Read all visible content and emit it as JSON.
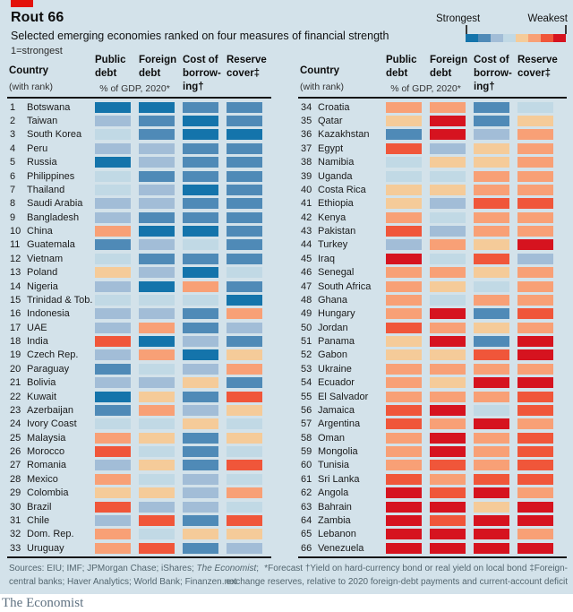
{
  "header": {
    "tag_color": "#e3120b",
    "title": "Rout 66",
    "subtitle": "Selected emerging economies ranked on four measures of financial strength",
    "scale_note": "1=strongest",
    "legend": {
      "strongest_label": "Strongest",
      "weakest_label": "Weakest"
    }
  },
  "palette": {
    "bins": [
      "#1474ab",
      "#4f8ab7",
      "#a2bdd7",
      "#c1d9e5",
      "#f5cb99",
      "#f8a076",
      "#f0563a",
      "#d6131f"
    ],
    "background": "#d3e2ea",
    "accent_red": "#e3120b"
  },
  "columns": {
    "country": "Country",
    "with_rank": "(with rank)",
    "gdp_note": "% of GDP, 2020*",
    "measures": [
      {
        "l1": "Public",
        "l2": "debt",
        "l3": ""
      },
      {
        "l1": "Foreign",
        "l2": "debt",
        "l3": ""
      },
      {
        "l1": "Cost of",
        "l2": "borrow-",
        "l3": "ing†"
      },
      {
        "l1": "Reserve",
        "l2": "cover‡",
        "l3": ""
      }
    ]
  },
  "chart_data": {
    "type": "heatmap",
    "title": "Rout 66",
    "subtitle": "Selected emerging economies ranked on four measures of financial strength",
    "measures": [
      "Public debt",
      "Foreign debt",
      "Cost of borrowing",
      "Reserve cover"
    ],
    "scale": "color bins 1 (strongest, dark blue) to 8 (weakest, red), as read from the chart cells",
    "countries": [
      {
        "rank": 1,
        "name": "Botswana",
        "values": [
          1,
          1,
          2,
          2
        ]
      },
      {
        "rank": 2,
        "name": "Taiwan",
        "values": [
          3,
          2,
          1,
          2
        ]
      },
      {
        "rank": 3,
        "name": "South Korea",
        "values": [
          4,
          2,
          1,
          1
        ]
      },
      {
        "rank": 4,
        "name": "Peru",
        "values": [
          3,
          3,
          2,
          2
        ]
      },
      {
        "rank": 5,
        "name": "Russia",
        "values": [
          1,
          3,
          2,
          2
        ]
      },
      {
        "rank": 6,
        "name": "Philippines",
        "values": [
          4,
          2,
          2,
          2
        ]
      },
      {
        "rank": 7,
        "name": "Thailand",
        "values": [
          4,
          3,
          1,
          2
        ]
      },
      {
        "rank": 8,
        "name": "Saudi Arabia",
        "values": [
          3,
          3,
          2,
          2
        ]
      },
      {
        "rank": 9,
        "name": "Bangladesh",
        "values": [
          3,
          2,
          2,
          2
        ]
      },
      {
        "rank": 10,
        "name": "China",
        "values": [
          6,
          1,
          1,
          2
        ]
      },
      {
        "rank": 11,
        "name": "Guatemala",
        "values": [
          2,
          3,
          4,
          2
        ]
      },
      {
        "rank": 12,
        "name": "Vietnam",
        "values": [
          4,
          2,
          2,
          2
        ]
      },
      {
        "rank": 13,
        "name": "Poland",
        "values": [
          5,
          3,
          1,
          4
        ]
      },
      {
        "rank": 14,
        "name": "Nigeria",
        "values": [
          3,
          1,
          6,
          2
        ]
      },
      {
        "rank": 15,
        "name": "Trinidad & Tob.",
        "values": [
          4,
          4,
          4,
          1
        ]
      },
      {
        "rank": 16,
        "name": "Indonesia",
        "values": [
          3,
          3,
          2,
          6
        ]
      },
      {
        "rank": 17,
        "name": "UAE",
        "values": [
          3,
          6,
          2,
          3
        ]
      },
      {
        "rank": 18,
        "name": "India",
        "values": [
          7,
          1,
          3,
          2
        ]
      },
      {
        "rank": 19,
        "name": "Czech Rep.",
        "values": [
          3,
          6,
          1,
          5
        ]
      },
      {
        "rank": 20,
        "name": "Paraguay",
        "values": [
          2,
          4,
          3,
          6
        ]
      },
      {
        "rank": 21,
        "name": "Bolivia",
        "values": [
          3,
          3,
          5,
          2
        ]
      },
      {
        "rank": 22,
        "name": "Kuwait",
        "values": [
          1,
          5,
          2,
          7
        ]
      },
      {
        "rank": 23,
        "name": "Azerbaijan",
        "values": [
          2,
          6,
          3,
          5
        ]
      },
      {
        "rank": 24,
        "name": "Ivory Coast",
        "values": [
          4,
          4,
          5,
          4
        ]
      },
      {
        "rank": 25,
        "name": "Malaysia",
        "values": [
          6,
          5,
          2,
          5
        ]
      },
      {
        "rank": 26,
        "name": "Morocco",
        "values": [
          7,
          4,
          2,
          4
        ]
      },
      {
        "rank": 27,
        "name": "Romania",
        "values": [
          3,
          5,
          2,
          7
        ]
      },
      {
        "rank": 28,
        "name": "Mexico",
        "values": [
          6,
          4,
          3,
          4
        ]
      },
      {
        "rank": 29,
        "name": "Colombia",
        "values": [
          5,
          5,
          3,
          6
        ]
      },
      {
        "rank": 30,
        "name": "Brazil",
        "values": [
          7,
          3,
          3,
          4
        ]
      },
      {
        "rank": 31,
        "name": "Chile",
        "values": [
          3,
          7,
          2,
          7
        ]
      },
      {
        "rank": 32,
        "name": "Dom. Rep.",
        "values": [
          6,
          4,
          5,
          5
        ]
      },
      {
        "rank": 33,
        "name": "Uruguay",
        "values": [
          6,
          7,
          2,
          3
        ]
      },
      {
        "rank": 34,
        "name": "Croatia",
        "values": [
          6,
          6,
          2,
          4
        ]
      },
      {
        "rank": 35,
        "name": "Qatar",
        "values": [
          5,
          8,
          2,
          5
        ]
      },
      {
        "rank": 36,
        "name": "Kazakhstan",
        "values": [
          2,
          8,
          3,
          6
        ]
      },
      {
        "rank": 37,
        "name": "Egypt",
        "values": [
          7,
          3,
          5,
          6
        ]
      },
      {
        "rank": 38,
        "name": "Namibia",
        "values": [
          4,
          5,
          5,
          6
        ]
      },
      {
        "rank": 39,
        "name": "Uganda",
        "values": [
          4,
          4,
          6,
          6
        ]
      },
      {
        "rank": 40,
        "name": "Costa Rica",
        "values": [
          5,
          5,
          6,
          6
        ]
      },
      {
        "rank": 41,
        "name": "Ethiopia",
        "values": [
          5,
          3,
          7,
          7
        ]
      },
      {
        "rank": 42,
        "name": "Kenya",
        "values": [
          6,
          4,
          6,
          6
        ]
      },
      {
        "rank": 43,
        "name": "Pakistan",
        "values": [
          7,
          3,
          6,
          6
        ]
      },
      {
        "rank": 44,
        "name": "Turkey",
        "values": [
          3,
          6,
          5,
          8
        ]
      },
      {
        "rank": 45,
        "name": "Iraq",
        "values": [
          8,
          4,
          7,
          3
        ]
      },
      {
        "rank": 46,
        "name": "Senegal",
        "values": [
          6,
          6,
          5,
          6
        ]
      },
      {
        "rank": 47,
        "name": "South Africa",
        "values": [
          6,
          5,
          4,
          6
        ]
      },
      {
        "rank": 48,
        "name": "Ghana",
        "values": [
          6,
          4,
          6,
          6
        ]
      },
      {
        "rank": 49,
        "name": "Hungary",
        "values": [
          6,
          8,
          2,
          7
        ]
      },
      {
        "rank": 50,
        "name": "Jordan",
        "values": [
          7,
          6,
          5,
          6
        ]
      },
      {
        "rank": 51,
        "name": "Panama",
        "values": [
          5,
          8,
          2,
          8
        ]
      },
      {
        "rank": 52,
        "name": "Gabon",
        "values": [
          5,
          5,
          7,
          8
        ]
      },
      {
        "rank": 53,
        "name": "Ukraine",
        "values": [
          6,
          6,
          6,
          6
        ]
      },
      {
        "rank": 54,
        "name": "Ecuador",
        "values": [
          6,
          5,
          8,
          8
        ]
      },
      {
        "rank": 55,
        "name": "El Salvador",
        "values": [
          6,
          6,
          6,
          7
        ]
      },
      {
        "rank": 56,
        "name": "Jamaica",
        "values": [
          7,
          8,
          4,
          7
        ]
      },
      {
        "rank": 57,
        "name": "Argentina",
        "values": [
          7,
          6,
          8,
          6
        ]
      },
      {
        "rank": 58,
        "name": "Oman",
        "values": [
          6,
          8,
          6,
          7
        ]
      },
      {
        "rank": 59,
        "name": "Mongolia",
        "values": [
          6,
          8,
          6,
          7
        ]
      },
      {
        "rank": 60,
        "name": "Tunisia",
        "values": [
          6,
          7,
          6,
          7
        ]
      },
      {
        "rank": 61,
        "name": "Sri Lanka",
        "values": [
          7,
          6,
          7,
          7
        ]
      },
      {
        "rank": 62,
        "name": "Angola",
        "values": [
          8,
          7,
          8,
          6
        ]
      },
      {
        "rank": 63,
        "name": "Bahrain",
        "values": [
          8,
          8,
          5,
          8
        ]
      },
      {
        "rank": 64,
        "name": "Zambia",
        "values": [
          8,
          7,
          8,
          8
        ]
      },
      {
        "rank": 65,
        "name": "Lebanon",
        "values": [
          8,
          8,
          8,
          6
        ]
      },
      {
        "rank": 66,
        "name": "Venezuela",
        "values": [
          8,
          8,
          8,
          8
        ]
      }
    ]
  },
  "footer": {
    "sources_line1_pre": "Sources: EIU; IMF; JPMorgan Chase; iShares; ",
    "sources_line1_italic": "The Economist",
    "sources_line1_post": ";",
    "sources_line2": "central banks; Haver Analytics; World Bank; Finanzen.net",
    "notes_line1": "*Forecast   †Yield on hard-currency bond or real yield on local bond   ‡Foreign-",
    "notes_line2": "exchange reserves, relative to 2020 foreign-debt payments and current-account deficit"
  },
  "brand": "The Economist"
}
